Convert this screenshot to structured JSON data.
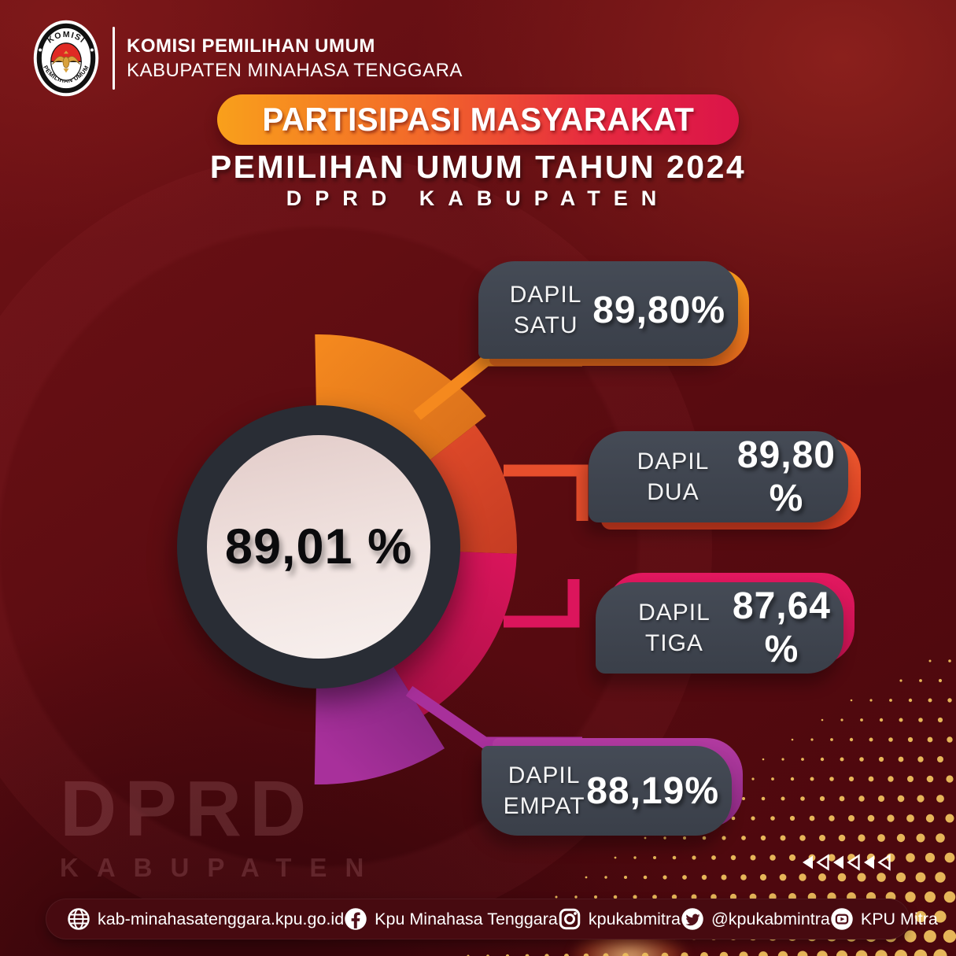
{
  "header": {
    "logo": {
      "arc_top": "KOMISI",
      "arc_bottom": "PEMILIHAN UMUM"
    },
    "org_line1": "KOMISI PEMILIHAN UMUM",
    "org_line2": "KABUPATEN MINAHASA TENGGARA"
  },
  "title": {
    "banner": "PARTISIPASI MASYARAKAT",
    "subtitle": "PEMILIHAN UMUM TAHUN 2024",
    "subtitle2": "DPRD KABUPATEN"
  },
  "chart_data": {
    "type": "pie",
    "title": "Partisipasi Masyarakat Pemilihan Umum Tahun 2024 DPRD Kabupaten",
    "center_label": "89,01 %",
    "center_value": 89.01,
    "unit": "%",
    "legend_position": "right",
    "segments": [
      {
        "label": "DAPIL SATU",
        "label_line1": "DAPIL",
        "label_line2": "SATU",
        "value": 89.8,
        "value_label": "89,80%",
        "color": "#f5891e",
        "color2": "#d2691a"
      },
      {
        "label": "DAPIL DUA",
        "label_line1": "DAPIL",
        "label_line2": "DUA",
        "value": 89.8,
        "value_label": "89,80 %",
        "color": "#e84e2c",
        "color2": "#c23b22"
      },
      {
        "label": "DAPIL TIGA",
        "label_line1": "DAPIL",
        "label_line2": "TIGA",
        "value": 87.64,
        "value_label": "87,64 %",
        "color": "#dc155c",
        "color2": "#a50f44"
      },
      {
        "label": "DAPIL EMPAT",
        "label_line1": "DAPIL",
        "label_line2": "EMPAT",
        "value": 88.19,
        "value_label": "88,19%",
        "color": "#a8309b",
        "color2": "#6d2070"
      }
    ]
  },
  "watermark": {
    "line1": "DPRD",
    "line2": "KABUPATEN"
  },
  "footer": {
    "items": [
      {
        "icon": "globe-icon",
        "label": "kab-minahasatenggara.kpu.go.id"
      },
      {
        "icon": "facebook-icon",
        "label": "Kpu Minahasa Tenggara"
      },
      {
        "icon": "instagram-icon",
        "label": "kpukabmitra"
      },
      {
        "icon": "twitter-icon",
        "label": "@kpukabmintra"
      },
      {
        "icon": "youtube-icon",
        "label": "KPU Mitra"
      }
    ]
  },
  "colors": {
    "background": "#5c0c11",
    "card": "#3e434d",
    "gold_dots": "#eec05e",
    "center_circle": "#f0e2df",
    "ring": "#292d35",
    "banner_gradient_start": "#f9a01b",
    "banner_gradient_end": "#db1449"
  }
}
